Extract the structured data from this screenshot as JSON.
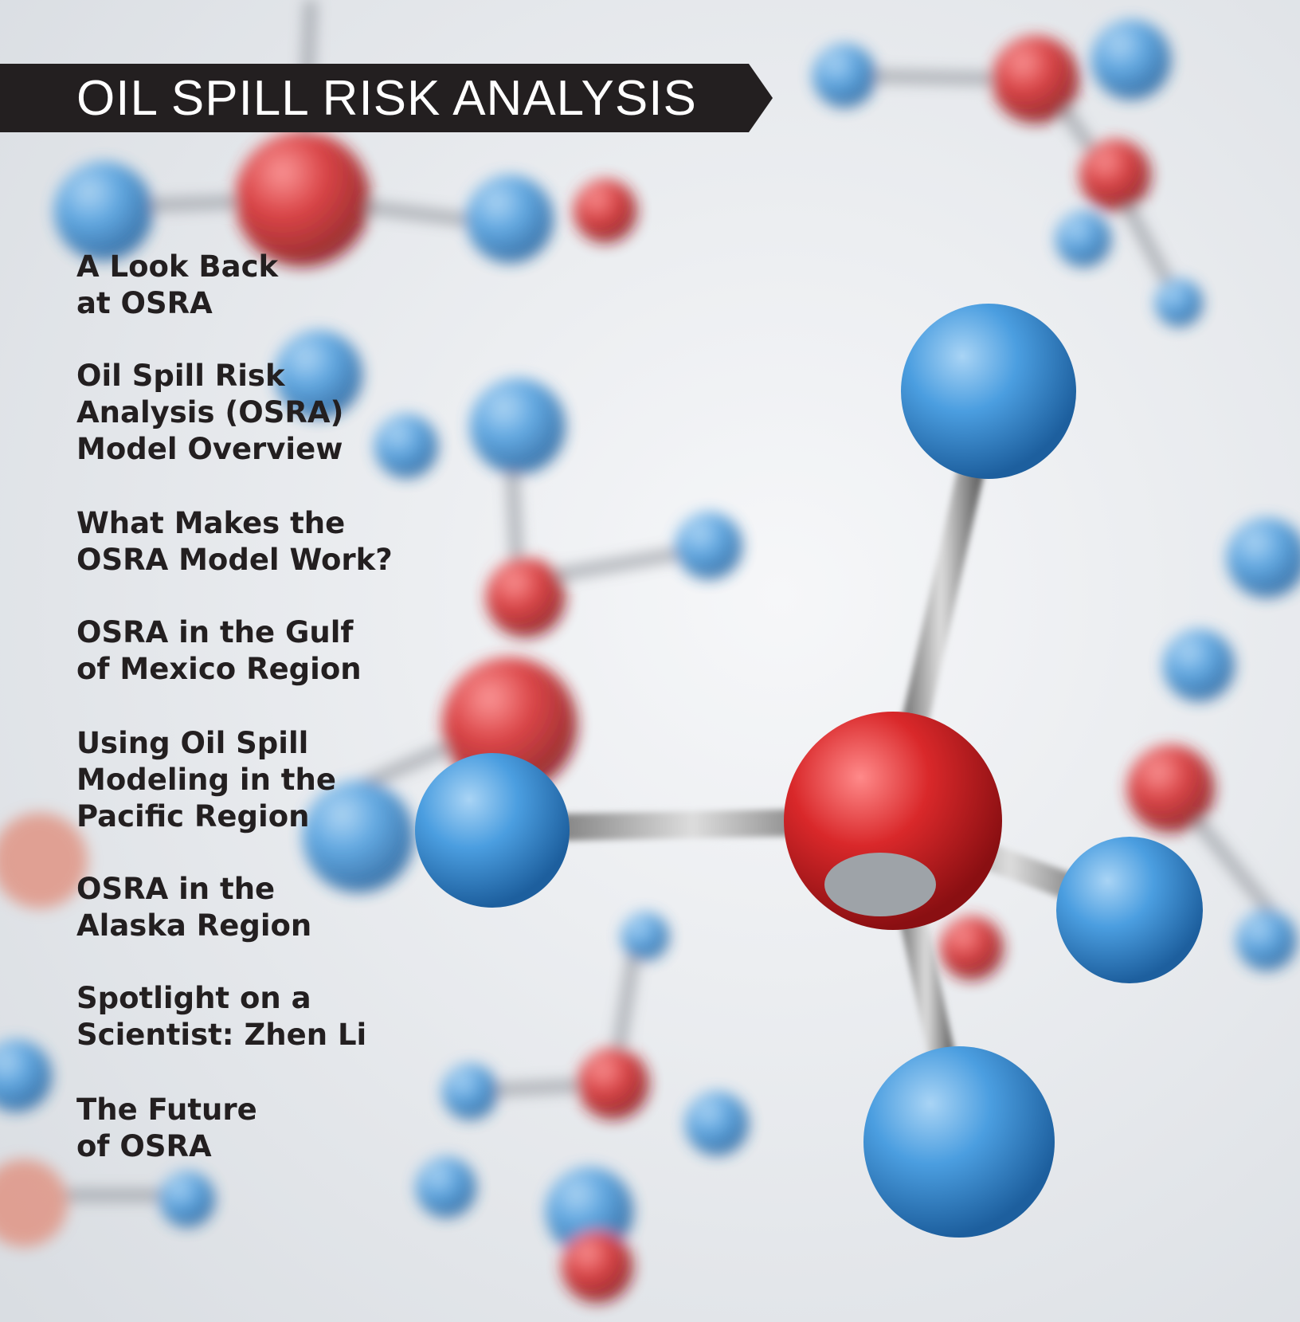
{
  "header": {
    "title": "OIL SPILL RISK ANALYSIS"
  },
  "contents": [
    [
      "A Look Back",
      "at OSRA"
    ],
    [
      "Oil Spill Risk",
      "Analysis (OSRA)",
      "Model Overview"
    ],
    [
      "What Makes the",
      "OSRA Model Work?"
    ],
    [
      "OSRA in the Gulf",
      "of Mexico Region"
    ],
    [
      "Using Oil Spill",
      "Modeling in the",
      "Pacific Region"
    ],
    [
      "OSRA in the",
      "Alaska Region"
    ],
    [
      "Spotlight on a",
      "Scientist: Zhen Li"
    ],
    [
      "The Future",
      "of OSRA"
    ]
  ]
}
